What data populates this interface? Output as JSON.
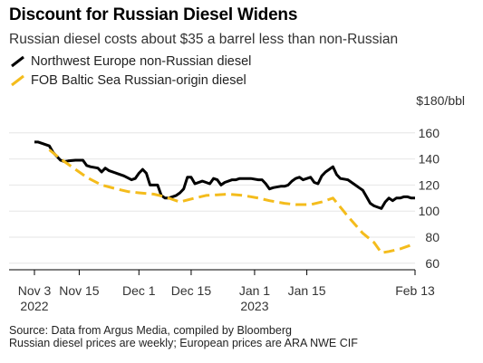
{
  "title": "Discount for Russian Diesel Widens",
  "subtitle": "Russian diesel costs about $35 a barrel less than non-Russian",
  "footer": {
    "source": "Source: Data from Argus Media, compiled by Bloomberg",
    "note": "Russian diesel prices are weekly; European prices are ARA NWE CIF"
  },
  "chart_data": {
    "type": "line",
    "ylabel": "",
    "y_unit_label": "$180/bbl",
    "ylim": [
      55,
      180
    ],
    "y_ticks": [
      60,
      80,
      100,
      120,
      140,
      160
    ],
    "y_tick_labels": [
      "60",
      "80",
      "100",
      "120",
      "140",
      "160"
    ],
    "xlim": [
      "2022-11-03",
      "2023-02-13"
    ],
    "x_ticks": [
      {
        "date": "2022-11-03",
        "label": "Nov 3",
        "sublabel": "2022"
      },
      {
        "date": "2022-11-15",
        "label": "Nov 15",
        "sublabel": ""
      },
      {
        "date": "2022-12-01",
        "label": "Dec 1",
        "sublabel": ""
      },
      {
        "date": "2022-12-15",
        "label": "Dec 15",
        "sublabel": ""
      },
      {
        "date": "2023-01-01",
        "label": "Jan 1",
        "sublabel": "2023"
      },
      {
        "date": "2023-01-15",
        "label": "Jan 15",
        "sublabel": ""
      },
      {
        "date": "2023-02-13",
        "label": "Feb 13",
        "sublabel": ""
      }
    ],
    "grid": true,
    "legend_position": "top-left",
    "series": [
      {
        "name": "Northwest Europe non-Russian diesel",
        "color": "#000000",
        "style": "solid",
        "points": [
          [
            "2022-11-03",
            153
          ],
          [
            "2022-11-04",
            153
          ],
          [
            "2022-11-05",
            152
          ],
          [
            "2022-11-07",
            150
          ],
          [
            "2022-11-08",
            145
          ],
          [
            "2022-11-10",
            139
          ],
          [
            "2022-11-11",
            138
          ],
          [
            "2022-11-12",
            138.5
          ],
          [
            "2022-11-14",
            139
          ],
          [
            "2022-11-15",
            139
          ],
          [
            "2022-11-16",
            139
          ],
          [
            "2022-11-17",
            135
          ],
          [
            "2022-11-18",
            134
          ],
          [
            "2022-11-20",
            133
          ],
          [
            "2022-11-21",
            130
          ],
          [
            "2022-11-22",
            133
          ],
          [
            "2022-11-23",
            131
          ],
          [
            "2022-11-25",
            129
          ],
          [
            "2022-11-27",
            127
          ],
          [
            "2022-11-29",
            124
          ],
          [
            "2022-11-30",
            125
          ],
          [
            "2022-12-01",
            129
          ],
          [
            "2022-12-02",
            132
          ],
          [
            "2022-12-03",
            129
          ],
          [
            "2022-12-04",
            120
          ],
          [
            "2022-12-05",
            120
          ],
          [
            "2022-12-06",
            120
          ],
          [
            "2022-12-07",
            112
          ],
          [
            "2022-12-08",
            110
          ],
          [
            "2022-12-09",
            110
          ],
          [
            "2022-12-11",
            112
          ],
          [
            "2022-12-12",
            114
          ],
          [
            "2022-12-13",
            117
          ],
          [
            "2022-12-14",
            126
          ],
          [
            "2022-12-15",
            126
          ],
          [
            "2022-12-16",
            121
          ],
          [
            "2022-12-18",
            123
          ],
          [
            "2022-12-19",
            122
          ],
          [
            "2022-12-20",
            121
          ],
          [
            "2022-12-21",
            125
          ],
          [
            "2022-12-22",
            124
          ],
          [
            "2022-12-23",
            120
          ],
          [
            "2022-12-24",
            122
          ],
          [
            "2022-12-26",
            124
          ],
          [
            "2022-12-27",
            124
          ],
          [
            "2022-12-28",
            125
          ],
          [
            "2022-12-30",
            125
          ],
          [
            "2022-12-31",
            125
          ],
          [
            "2023-01-02",
            124
          ],
          [
            "2023-01-03",
            124
          ],
          [
            "2023-01-04",
            121
          ],
          [
            "2023-01-05",
            117
          ],
          [
            "2023-01-06",
            118
          ],
          [
            "2023-01-08",
            119
          ],
          [
            "2023-01-09",
            119
          ],
          [
            "2023-01-10",
            120
          ],
          [
            "2023-01-11",
            123
          ],
          [
            "2023-01-12",
            125
          ],
          [
            "2023-01-13",
            126
          ],
          [
            "2023-01-14",
            124
          ],
          [
            "2023-01-16",
            126
          ],
          [
            "2023-01-17",
            122
          ],
          [
            "2023-01-18",
            121
          ],
          [
            "2023-01-19",
            127
          ],
          [
            "2023-01-20",
            130
          ],
          [
            "2023-01-21",
            132
          ],
          [
            "2023-01-22",
            134
          ],
          [
            "2023-01-23",
            128
          ],
          [
            "2023-01-24",
            125
          ],
          [
            "2023-01-26",
            124
          ],
          [
            "2023-01-27",
            122
          ],
          [
            "2023-01-28",
            120
          ],
          [
            "2023-01-29",
            118
          ],
          [
            "2023-01-30",
            116
          ],
          [
            "2023-01-31",
            111
          ],
          [
            "2023-02-01",
            106
          ],
          [
            "2023-02-02",
            104
          ],
          [
            "2023-02-03",
            103
          ],
          [
            "2023-02-04",
            102
          ],
          [
            "2023-02-05",
            107
          ],
          [
            "2023-02-06",
            110
          ],
          [
            "2023-02-07",
            108
          ],
          [
            "2023-02-08",
            110
          ],
          [
            "2023-02-09",
            110
          ],
          [
            "2023-02-10",
            111
          ],
          [
            "2023-02-11",
            111
          ],
          [
            "2023-02-12",
            110
          ],
          [
            "2023-02-13",
            110
          ]
        ]
      },
      {
        "name": "FOB Baltic Sea Russian-origin diesel",
        "color": "#f4bc1c",
        "style": "dashed",
        "points": [
          [
            "2022-11-07",
            147
          ],
          [
            "2022-11-10",
            140
          ],
          [
            "2022-11-14",
            132
          ],
          [
            "2022-11-17",
            126
          ],
          [
            "2022-11-21",
            120
          ],
          [
            "2022-11-25",
            117
          ],
          [
            "2022-11-28",
            115
          ],
          [
            "2022-12-01",
            114
          ],
          [
            "2022-12-05",
            113
          ],
          [
            "2022-12-08",
            111
          ],
          [
            "2022-12-12",
            107
          ],
          [
            "2022-12-16",
            110
          ],
          [
            "2022-12-19",
            112
          ],
          [
            "2022-12-22",
            112.5
          ],
          [
            "2022-12-25",
            113
          ],
          [
            "2022-12-29",
            112
          ],
          [
            "2023-01-02",
            110
          ],
          [
            "2023-01-05",
            108
          ],
          [
            "2023-01-09",
            106
          ],
          [
            "2023-01-12",
            105
          ],
          [
            "2023-01-16",
            105
          ],
          [
            "2023-01-19",
            107
          ],
          [
            "2023-01-22",
            110
          ],
          [
            "2023-01-26",
            96
          ],
          [
            "2023-01-30",
            83
          ],
          [
            "2023-02-02",
            76
          ],
          [
            "2023-02-04",
            68
          ],
          [
            "2023-02-06",
            69
          ],
          [
            "2023-02-09",
            71
          ],
          [
            "2023-02-11",
            73
          ],
          [
            "2023-02-13",
            75
          ]
        ]
      }
    ]
  }
}
